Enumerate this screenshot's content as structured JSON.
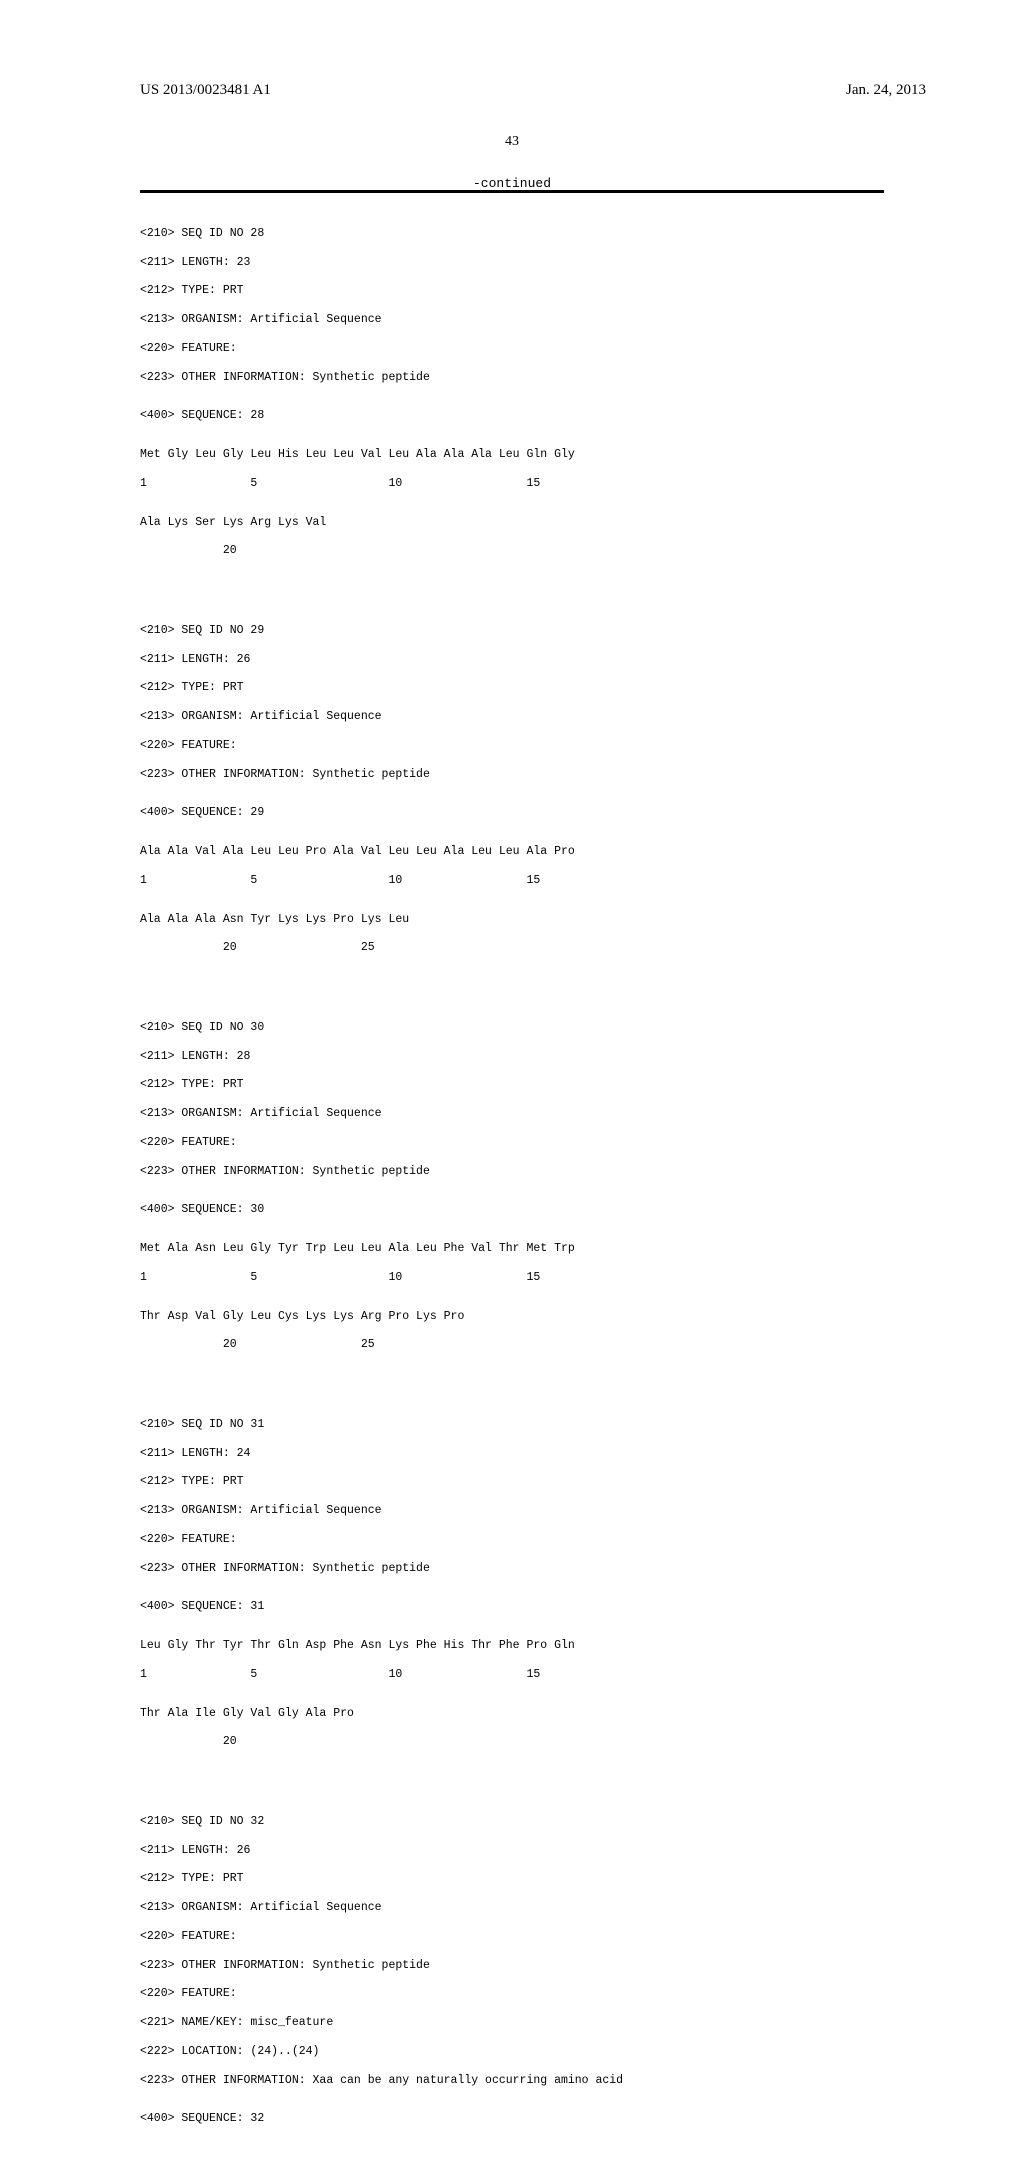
{
  "header": {
    "publication_number": "US 2013/0023481 A1",
    "publication_date": "Jan. 24, 2013",
    "page_number": "43",
    "continued_label": "-continued"
  },
  "sequences": [
    {
      "id_line": "<210> SEQ ID NO 28",
      "length_line": "<211> LENGTH: 23",
      "type_line": "<212> TYPE: PRT",
      "organism_line": "<213> ORGANISM: Artificial Sequence",
      "feature_line": "<220> FEATURE:",
      "info_line": "<223> OTHER INFORMATION: Synthetic peptide",
      "seq_line": "<400> SEQUENCE: 28",
      "residues_1": "Met Gly Leu Gly Leu His Leu Leu Val Leu Ala Ala Ala Leu Gln Gly",
      "positions_1": "1               5                   10                  15",
      "residues_2": "Ala Lys Ser Lys Arg Lys Val",
      "positions_2": "            20"
    },
    {
      "id_line": "<210> SEQ ID NO 29",
      "length_line": "<211> LENGTH: 26",
      "type_line": "<212> TYPE: PRT",
      "organism_line": "<213> ORGANISM: Artificial Sequence",
      "feature_line": "<220> FEATURE:",
      "info_line": "<223> OTHER INFORMATION: Synthetic peptide",
      "seq_line": "<400> SEQUENCE: 29",
      "residues_1": "Ala Ala Val Ala Leu Leu Pro Ala Val Leu Leu Ala Leu Leu Ala Pro",
      "positions_1": "1               5                   10                  15",
      "residues_2": "Ala Ala Ala Asn Tyr Lys Lys Pro Lys Leu",
      "positions_2": "            20                  25"
    },
    {
      "id_line": "<210> SEQ ID NO 30",
      "length_line": "<211> LENGTH: 28",
      "type_line": "<212> TYPE: PRT",
      "organism_line": "<213> ORGANISM: Artificial Sequence",
      "feature_line": "<220> FEATURE:",
      "info_line": "<223> OTHER INFORMATION: Synthetic peptide",
      "seq_line": "<400> SEQUENCE: 30",
      "residues_1": "Met Ala Asn Leu Gly Tyr Trp Leu Leu Ala Leu Phe Val Thr Met Trp",
      "positions_1": "1               5                   10                  15",
      "residues_2": "Thr Asp Val Gly Leu Cys Lys Lys Arg Pro Lys Pro",
      "positions_2": "            20                  25"
    },
    {
      "id_line": "<210> SEQ ID NO 31",
      "length_line": "<211> LENGTH: 24",
      "type_line": "<212> TYPE: PRT",
      "organism_line": "<213> ORGANISM: Artificial Sequence",
      "feature_line": "<220> FEATURE:",
      "info_line": "<223> OTHER INFORMATION: Synthetic peptide",
      "seq_line": "<400> SEQUENCE: 31",
      "residues_1": "Leu Gly Thr Tyr Thr Gln Asp Phe Asn Lys Phe His Thr Phe Pro Gln",
      "positions_1": "1               5                   10                  15",
      "residues_2": "Thr Ala Ile Gly Val Gly Ala Pro",
      "positions_2": "            20"
    },
    {
      "id_line": "<210> SEQ ID NO 32",
      "length_line": "<211> LENGTH: 26",
      "type_line": "<212> TYPE: PRT",
      "organism_line": "<213> ORGANISM: Artificial Sequence",
      "feature_line": "<220> FEATURE:",
      "info_line": "<223> OTHER INFORMATION: Synthetic peptide",
      "feature2_line": "<220> FEATURE:",
      "namekey_line": "<221> NAME/KEY: misc_feature",
      "location_line": "<222> LOCATION: (24)..(24)",
      "info2_line": "<223> OTHER INFORMATION: Xaa can be any naturally occurring amino acid",
      "seq_line": "<400> SEQUENCE: 32"
    }
  ]
}
